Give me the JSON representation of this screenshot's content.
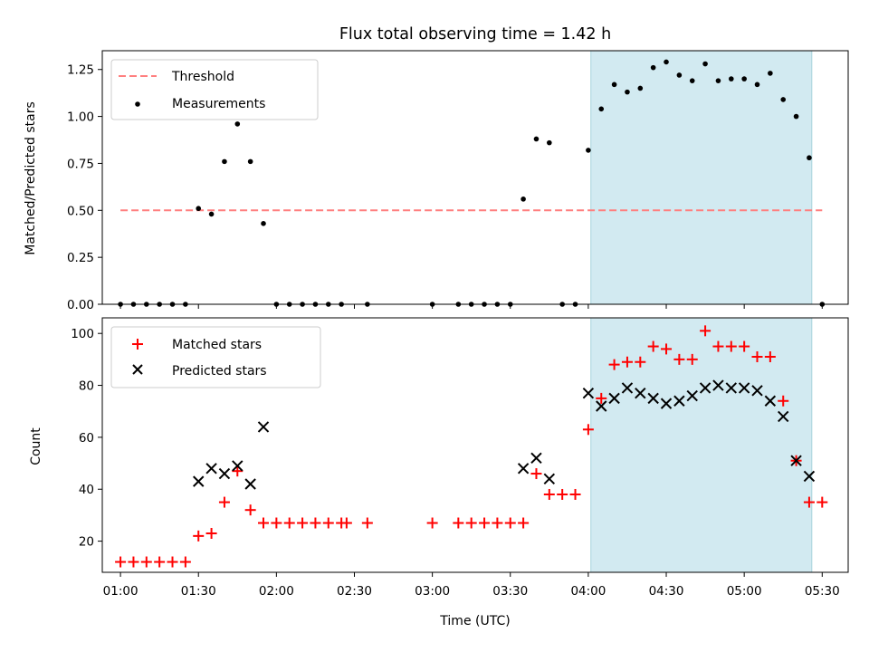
{
  "chart_data": [
    {
      "type": "scatter",
      "title": "Flux total observing time = 1.42 h",
      "xlabel": "",
      "ylabel": "Matched/Predicted stars",
      "xlim": [
        "00:53",
        "05:40"
      ],
      "ylim": [
        0,
        1.35
      ],
      "y_ticks": [
        0.0,
        0.25,
        0.5,
        0.75,
        1.0,
        1.25
      ],
      "y_tick_labels": [
        "0.00",
        "0.25",
        "0.50",
        "0.75",
        "1.00",
        "1.25"
      ],
      "shaded_region": {
        "from": "04:01",
        "to": "05:26",
        "color": "#add8e6"
      },
      "legend": {
        "position": "top-left",
        "entries": [
          "Threshold",
          "Measurements"
        ]
      },
      "series": [
        {
          "name": "Threshold",
          "style": "dashed-line",
          "color": "#ff7f7f",
          "x": [
            "01:00",
            "05:30"
          ],
          "y": [
            0.5,
            0.5
          ]
        },
        {
          "name": "Measurements",
          "style": "dot",
          "color": "#000000",
          "x": [
            "01:00",
            "01:05",
            "01:10",
            "01:15",
            "01:20",
            "01:25",
            "01:30",
            "01:35",
            "01:40",
            "01:45",
            "01:50",
            "01:55",
            "02:00",
            "02:05",
            "02:10",
            "02:15",
            "02:20",
            "02:25",
            "02:35",
            "03:00",
            "03:10",
            "03:15",
            "03:20",
            "03:25",
            "03:30",
            "03:35",
            "03:40",
            "03:45",
            "03:50",
            "03:55",
            "04:00",
            "04:05",
            "04:10",
            "04:15",
            "04:20",
            "04:25",
            "04:30",
            "04:35",
            "04:40",
            "04:45",
            "04:50",
            "04:55",
            "05:00",
            "05:05",
            "05:10",
            "05:15",
            "05:20",
            "05:25",
            "05:30"
          ],
          "y": [
            0,
            0,
            0,
            0,
            0,
            0,
            0.51,
            0.48,
            0.76,
            0.96,
            0.76,
            0.43,
            0,
            0,
            0,
            0,
            0,
            0,
            0,
            0,
            0,
            0,
            0,
            0,
            0,
            0.56,
            0.88,
            0.86,
            0,
            0,
            0.82,
            1.04,
            1.17,
            1.13,
            1.15,
            1.26,
            1.29,
            1.22,
            1.19,
            1.28,
            1.19,
            1.2,
            1.2,
            1.17,
            1.23,
            1.09,
            1.0,
            0.78,
            0
          ]
        }
      ]
    },
    {
      "type": "scatter",
      "title": "",
      "xlabel": "Time (UTC)",
      "ylabel": "Count",
      "xlim": [
        "00:53",
        "05:40"
      ],
      "ylim": [
        8,
        106
      ],
      "y_ticks": [
        20,
        40,
        60,
        80,
        100
      ],
      "y_tick_labels": [
        "20",
        "40",
        "60",
        "80",
        "100"
      ],
      "x_ticks": [
        "01:00",
        "01:30",
        "02:00",
        "02:30",
        "03:00",
        "03:30",
        "04:00",
        "04:30",
        "05:00",
        "05:30"
      ],
      "shaded_region": {
        "from": "04:01",
        "to": "05:26",
        "color": "#add8e6"
      },
      "legend": {
        "position": "top-left",
        "entries": [
          "Matched stars",
          "Predicted stars"
        ]
      },
      "series": [
        {
          "name": "Matched stars",
          "style": "plus",
          "color": "#ff0000",
          "x": [
            "01:00",
            "01:05",
            "01:10",
            "01:15",
            "01:20",
            "01:25",
            "01:30",
            "01:35",
            "01:40",
            "01:45",
            "01:50",
            "01:55",
            "02:00",
            "02:05",
            "02:10",
            "02:15",
            "02:20",
            "02:25",
            "02:27",
            "02:35",
            "03:00",
            "03:10",
            "03:15",
            "03:20",
            "03:25",
            "03:30",
            "03:35",
            "03:40",
            "03:45",
            "03:50",
            "03:55",
            "04:00",
            "04:05",
            "04:10",
            "04:15",
            "04:20",
            "04:25",
            "04:30",
            "04:35",
            "04:40",
            "04:45",
            "04:50",
            "04:55",
            "05:00",
            "05:05",
            "05:10",
            "05:15",
            "05:20",
            "05:25",
            "05:30"
          ],
          "y": [
            12,
            12,
            12,
            12,
            12,
            12,
            22,
            23,
            35,
            47,
            32,
            27,
            27,
            27,
            27,
            27,
            27,
            27,
            27,
            27,
            27,
            27,
            27,
            27,
            27,
            27,
            27,
            46,
            38,
            38,
            38,
            63,
            75,
            88,
            89,
            89,
            95,
            94,
            90,
            90,
            101,
            95,
            95,
            95,
            91,
            91,
            74,
            51,
            35,
            35
          ]
        },
        {
          "name": "Predicted stars",
          "style": "x",
          "color": "#000000",
          "x": [
            "01:30",
            "01:35",
            "01:40",
            "01:45",
            "01:50",
            "01:55",
            "03:35",
            "03:40",
            "03:45",
            "04:00",
            "04:05",
            "04:10",
            "04:15",
            "04:20",
            "04:25",
            "04:30",
            "04:35",
            "04:40",
            "04:45",
            "04:50",
            "04:55",
            "05:00",
            "05:05",
            "05:10",
            "05:15",
            "05:20",
            "05:25"
          ],
          "y": [
            43,
            48,
            46,
            49,
            42,
            64,
            48,
            52,
            44,
            77,
            72,
            75,
            79,
            77,
            75,
            73,
            74,
            76,
            79,
            80,
            79,
            79,
            78,
            74,
            68,
            51,
            45
          ]
        }
      ]
    }
  ]
}
